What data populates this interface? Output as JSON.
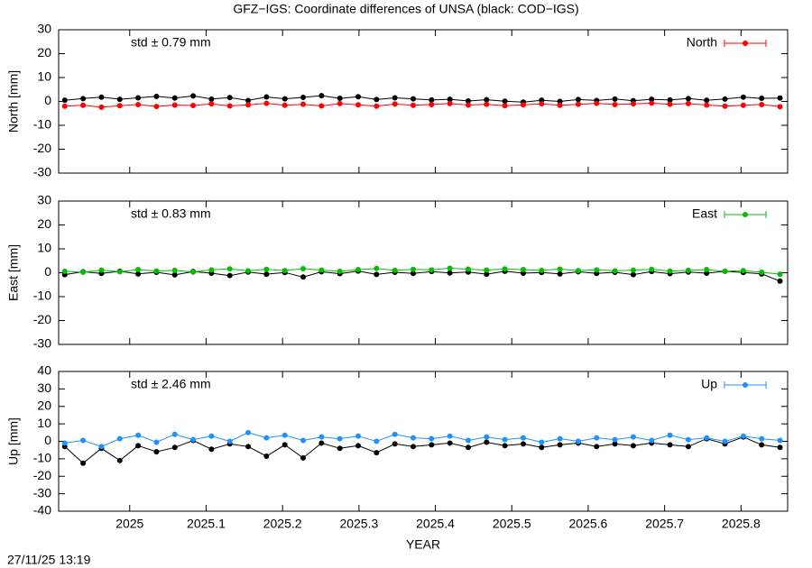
{
  "timestamp": "27/11/25 13:19",
  "chart_data": [
    {
      "type": "line",
      "title": "GFZ−IGS: Coordinate differences of UNSA (black: COD−IGS)",
      "ylabel": "North [mm]",
      "annotation": "std ± 0.79 mm",
      "x": [
        2024.915,
        2024.939,
        2024.963,
        2024.987,
        2025.011,
        2025.035,
        2025.059,
        2025.083,
        2025.107,
        2025.131,
        2025.155,
        2025.179,
        2025.203,
        2025.227,
        2025.251,
        2025.275,
        2025.299,
        2025.323,
        2025.347,
        2025.371,
        2025.395,
        2025.419,
        2025.443,
        2025.467,
        2025.491,
        2025.515,
        2025.539,
        2025.563,
        2025.587,
        2025.611,
        2025.635,
        2025.659,
        2025.683,
        2025.707,
        2025.731,
        2025.755,
        2025.779,
        2025.803,
        2025.827,
        2025.851
      ],
      "series": [
        {
          "color": "#000000",
          "values": [
            0.5,
            1.2,
            1.8,
            0.9,
            1.5,
            2.1,
            1.4,
            2.3,
            1.0,
            1.6,
            0.4,
            1.9,
            1.1,
            1.7,
            2.4,
            1.3,
            2.0,
            0.8,
            1.5,
            1.1,
            0.6,
            0.9,
            0.2,
            0.7,
            0.1,
            -0.3,
            0.5,
            0.0,
            0.8,
            0.4,
            1.0,
            0.3,
            0.9,
            0.6,
            1.2,
            0.5,
            1.0,
            1.8,
            1.3,
            1.4
          ]
        },
        {
          "name": "North",
          "color": "#ff0000",
          "values": [
            -2.0,
            -1.6,
            -2.4,
            -1.8,
            -1.3,
            -2.1,
            -1.5,
            -1.7,
            -1.0,
            -1.9,
            -1.4,
            -0.8,
            -1.6,
            -1.2,
            -1.9,
            -0.9,
            -1.4,
            -2.0,
            -1.1,
            -1.6,
            -1.3,
            -0.9,
            -1.5,
            -1.2,
            -1.8,
            -1.4,
            -1.0,
            -1.6,
            -1.2,
            -0.8,
            -1.3,
            -1.0,
            -0.7,
            -1.2,
            -0.9,
            -1.5,
            -2.0,
            -1.6,
            -1.3,
            -2.2
          ]
        }
      ],
      "xlim": [
        2024.907,
        2025.861
      ],
      "xticks": [
        2025,
        2025.1,
        2025.2,
        2025.3,
        2025.4,
        2025.5,
        2025.6,
        2025.7,
        2025.8
      ],
      "ylim": [
        -30,
        30
      ],
      "yticks": [
        -30,
        -20,
        -10,
        0,
        10,
        20,
        30
      ],
      "legend": "top-right"
    },
    {
      "type": "line",
      "ylabel": "East [mm]",
      "annotation": "std ± 0.83 mm",
      "x": [
        2024.915,
        2024.939,
        2024.963,
        2024.987,
        2025.011,
        2025.035,
        2025.059,
        2025.083,
        2025.107,
        2025.131,
        2025.155,
        2025.179,
        2025.203,
        2025.227,
        2025.251,
        2025.275,
        2025.299,
        2025.323,
        2025.347,
        2025.371,
        2025.395,
        2025.419,
        2025.443,
        2025.467,
        2025.491,
        2025.515,
        2025.539,
        2025.563,
        2025.587,
        2025.611,
        2025.635,
        2025.659,
        2025.683,
        2025.707,
        2025.731,
        2025.755,
        2025.779,
        2025.803,
        2025.827,
        2025.851
      ],
      "series": [
        {
          "color": "#000000",
          "values": [
            -0.8,
            0.4,
            -0.3,
            0.6,
            -0.5,
            0.2,
            -0.9,
            0.5,
            -0.2,
            -1.2,
            0.3,
            -0.6,
            0.1,
            -1.8,
            0.4,
            -0.4,
            0.7,
            -0.7,
            0.2,
            -0.3,
            0.5,
            -0.1,
            0.3,
            -0.6,
            0.6,
            -0.2,
            0.1,
            -0.5,
            0.4,
            -0.3,
            0.2,
            -0.8,
            0.5,
            -0.4,
            0.3,
            -0.2,
            0.6,
            0.1,
            -0.5,
            -3.5
          ]
        },
        {
          "name": "East",
          "color": "#00c000",
          "values": [
            0.6,
            0.2,
            1.1,
            0.4,
            1.3,
            0.7,
            1.0,
            0.3,
            1.2,
            1.6,
            0.8,
            1.4,
            0.9,
            1.7,
            1.1,
            0.6,
            1.3,
            1.8,
            1.0,
            1.4,
            1.2,
            1.9,
            1.5,
            1.1,
            1.6,
            1.3,
            1.0,
            1.5,
            0.9,
            1.2,
            0.8,
            1.1,
            1.4,
            0.7,
            1.0,
            1.3,
            0.6,
            0.9,
            0.2,
            -0.6
          ]
        }
      ],
      "xlim": [
        2024.907,
        2025.861
      ],
      "xticks": [
        2025,
        2025.1,
        2025.2,
        2025.3,
        2025.4,
        2025.5,
        2025.6,
        2025.7,
        2025.8
      ],
      "ylim": [
        -30,
        30
      ],
      "yticks": [
        -30,
        -20,
        -10,
        0,
        10,
        20,
        30
      ],
      "legend": "top-right"
    },
    {
      "type": "line",
      "ylabel": "Up [mm]",
      "xlabel": "YEAR",
      "annotation": "std ± 2.46 mm",
      "x": [
        2024.915,
        2024.939,
        2024.963,
        2024.987,
        2025.011,
        2025.035,
        2025.059,
        2025.083,
        2025.107,
        2025.131,
        2025.155,
        2025.179,
        2025.203,
        2025.227,
        2025.251,
        2025.275,
        2025.299,
        2025.323,
        2025.347,
        2025.371,
        2025.395,
        2025.419,
        2025.443,
        2025.467,
        2025.491,
        2025.515,
        2025.539,
        2025.563,
        2025.587,
        2025.611,
        2025.635,
        2025.659,
        2025.683,
        2025.707,
        2025.731,
        2025.755,
        2025.779,
        2025.803,
        2025.827,
        2025.851
      ],
      "series": [
        {
          "color": "#000000",
          "values": [
            -3.0,
            -12.5,
            -4.0,
            -11.0,
            -2.5,
            -6.0,
            -3.5,
            0.5,
            -4.5,
            -1.5,
            -3.0,
            -8.5,
            -2.0,
            -9.5,
            -1.0,
            -4.0,
            -2.5,
            -6.5,
            -1.5,
            -3.0,
            -2.0,
            -1.0,
            -3.5,
            -0.5,
            -2.5,
            -1.5,
            -3.5,
            -2.0,
            -1.0,
            -3.0,
            -1.5,
            -2.5,
            -1.0,
            -2.0,
            -3.0,
            1.5,
            -1.5,
            2.5,
            -2.0,
            -3.5
          ]
        },
        {
          "name": "Up",
          "color": "#1e90ff",
          "values": [
            -1.0,
            0.5,
            -3.0,
            1.5,
            3.5,
            -0.5,
            4.0,
            1.0,
            3.0,
            0.0,
            5.0,
            2.0,
            3.5,
            0.5,
            2.5,
            1.5,
            3.0,
            0.0,
            4.0,
            2.0,
            1.5,
            3.0,
            0.5,
            2.5,
            1.0,
            2.0,
            -0.5,
            1.5,
            0.0,
            2.0,
            1.0,
            2.5,
            0.5,
            3.5,
            1.0,
            2.0,
            0.0,
            3.0,
            1.5,
            0.5
          ]
        }
      ],
      "xlim": [
        2024.907,
        2025.861
      ],
      "xticks": [
        2025,
        2025.1,
        2025.2,
        2025.3,
        2025.4,
        2025.5,
        2025.6,
        2025.7,
        2025.8
      ],
      "ylim": [
        -40,
        40
      ],
      "yticks": [
        -40,
        -30,
        -20,
        -10,
        0,
        10,
        20,
        30,
        40
      ],
      "legend": "top-right"
    }
  ]
}
